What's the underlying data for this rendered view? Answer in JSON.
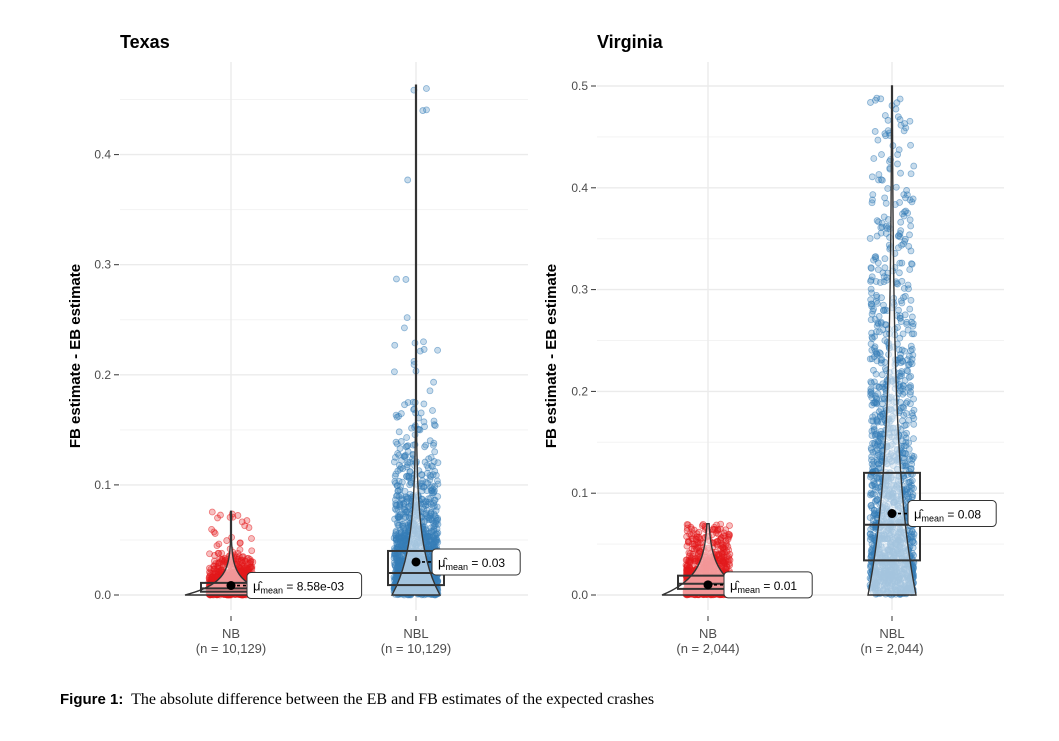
{
  "chart_data": [
    {
      "type": "violin-box-scatter",
      "title": "Texas",
      "ylabel": "FB estimate - EB estimate",
      "ylim": [
        -0.02,
        0.47
      ],
      "y_ticks": [
        0.0,
        0.1,
        0.2,
        0.3,
        0.4
      ],
      "y_tick_labels": [
        "0.0",
        "0.1",
        "0.2",
        "0.3",
        "0.4"
      ],
      "grid": true,
      "groups": [
        {
          "name": "NB",
          "n_label": "(n = 10,129)",
          "color": "#e41a1c",
          "q1": 0.003,
          "median": 0.006,
          "q3": 0.011,
          "max": 0.076,
          "mean": 0.00858,
          "mean_label": "8.58e-03"
        },
        {
          "name": "NBL",
          "n_label": "(n = 10,129)",
          "color": "#377eb8",
          "q1": 0.009,
          "median": 0.02,
          "q3": 0.04,
          "max": 0.463,
          "mean": 0.03,
          "mean_label": "0.03"
        }
      ]
    },
    {
      "type": "violin-box-scatter",
      "title": "Virginia",
      "ylabel": "FB estimate - EB estimate",
      "ylim": [
        -0.02,
        0.51
      ],
      "y_ticks": [
        0.0,
        0.1,
        0.2,
        0.3,
        0.4,
        0.5
      ],
      "y_tick_labels": [
        "0.0",
        "0.1",
        "0.2",
        "0.3",
        "0.4",
        "0.5"
      ],
      "grid": true,
      "groups": [
        {
          "name": "NB",
          "n_label": "(n = 2,044)",
          "color": "#e41a1c",
          "q1": 0.006,
          "median": 0.011,
          "q3": 0.019,
          "max": 0.07,
          "mean": 0.01,
          "mean_label": "0.01"
        },
        {
          "name": "NBL",
          "n_label": "(n = 2,044)",
          "color": "#377eb8",
          "q1": 0.034,
          "median": 0.069,
          "q3": 0.12,
          "max": 0.5,
          "mean": 0.08,
          "mean_label": "0.08"
        }
      ]
    }
  ],
  "caption": {
    "label": "Figure 1:",
    "text": "The absolute difference between the EB and FB estimates of the expected crashes"
  }
}
